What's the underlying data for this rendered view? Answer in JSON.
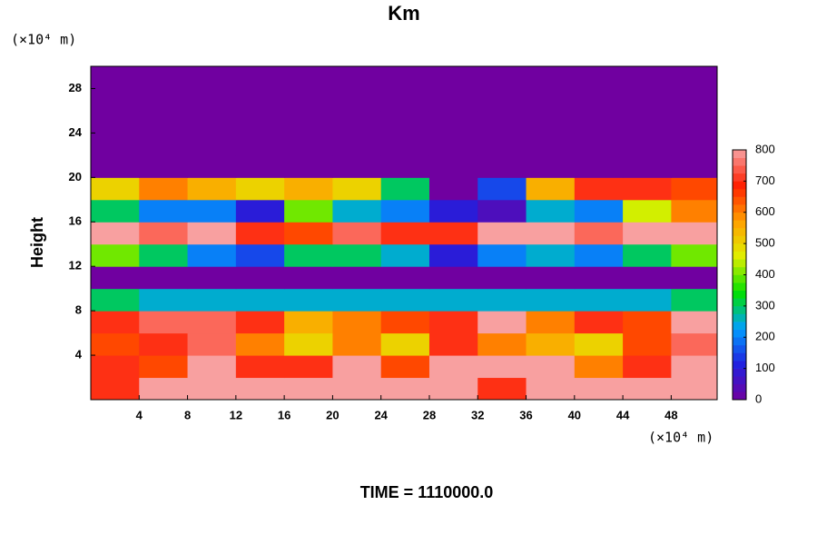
{
  "chart_data": {
    "type": "heatmap",
    "title": "Km",
    "subtitle": "TIME = 1110000.0",
    "y_label": "Height",
    "x_unit": "(×10⁴ m)",
    "y_unit": "(×10⁴ m)",
    "x": [
      2,
      6,
      10,
      14,
      18,
      22,
      26,
      30,
      34,
      38,
      42,
      46,
      50
    ],
    "y": [
      1,
      3,
      5,
      7,
      9,
      11,
      13,
      15,
      17,
      19,
      21,
      23,
      25,
      27,
      29
    ],
    "z": [
      [
        700,
        800,
        800,
        800,
        800,
        800,
        800,
        800,
        700,
        800,
        800,
        800,
        800
      ],
      [
        700,
        650,
        800,
        700,
        700,
        800,
        650,
        800,
        800,
        800,
        600,
        700,
        800
      ],
      [
        650,
        700,
        750,
        600,
        500,
        600,
        500,
        700,
        600,
        550,
        500,
        650,
        750
      ],
      [
        700,
        750,
        750,
        700,
        550,
        600,
        650,
        700,
        800,
        600,
        700,
        650,
        800
      ],
      [
        300,
        250,
        250,
        250,
        250,
        250,
        250,
        250,
        250,
        250,
        250,
        250,
        300
      ],
      [
        0,
        0,
        0,
        0,
        0,
        0,
        0,
        0,
        0,
        0,
        0,
        0,
        0
      ],
      [
        400,
        300,
        200,
        150,
        300,
        300,
        250,
        100,
        200,
        250,
        200,
        300,
        400
      ],
      [
        800,
        750,
        800,
        700,
        650,
        750,
        700,
        700,
        800,
        800,
        750,
        800,
        800
      ],
      [
        300,
        200,
        200,
        100,
        400,
        250,
        200,
        100,
        50,
        250,
        200,
        450,
        600
      ],
      [
        500,
        600,
        550,
        500,
        550,
        500,
        300,
        0,
        150,
        550,
        700,
        700,
        650
      ],
      [
        0,
        0,
        0,
        0,
        0,
        0,
        0,
        0,
        0,
        0,
        0,
        0,
        0
      ],
      [
        0,
        0,
        0,
        0,
        0,
        0,
        0,
        0,
        0,
        0,
        0,
        0,
        0
      ],
      [
        0,
        0,
        0,
        0,
        0,
        0,
        0,
        0,
        0,
        0,
        0,
        0,
        0
      ],
      [
        0,
        0,
        0,
        0,
        0,
        0,
        0,
        0,
        0,
        0,
        0,
        0,
        0
      ],
      [
        0,
        0,
        0,
        0,
        0,
        0,
        0,
        0,
        0,
        0,
        0,
        0,
        0
      ]
    ],
    "xlim": [
      0,
      51.8
    ],
    "ylim": [
      0,
      30
    ],
    "xticks": [
      4,
      8,
      12,
      16,
      20,
      24,
      28,
      32,
      36,
      40,
      44,
      48
    ],
    "yticks": [
      4,
      8,
      12,
      16,
      20,
      24,
      28
    ],
    "clim": [
      0,
      800
    ],
    "cticks": [
      0,
      100,
      200,
      300,
      400,
      500,
      600,
      700,
      800
    ],
    "colormap": [
      "#7000a0",
      "#2020e0",
      "#00a0ff",
      "#00e000",
      "#e0f000",
      "#ffa000",
      "#ff2000",
      "#f8a0a0"
    ]
  }
}
